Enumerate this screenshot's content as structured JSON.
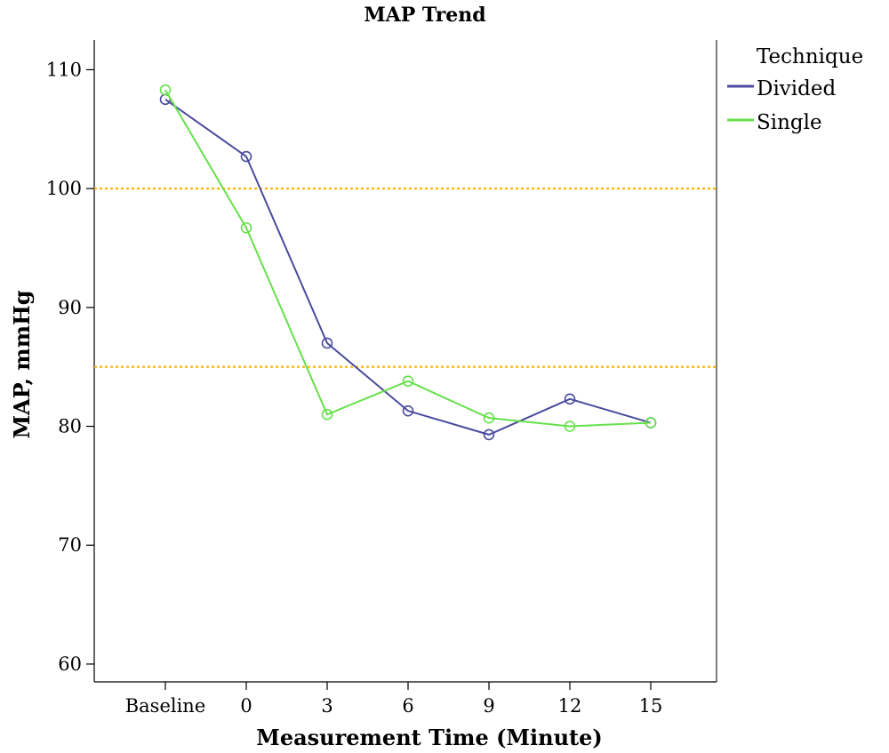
{
  "chart_data": {
    "type": "line",
    "title": "MAP Trend",
    "xlabel": "Measurement Time (Minute)",
    "ylabel": "MAP, mmHg",
    "categories": [
      "Baseline",
      "0",
      "3",
      "6",
      "9",
      "12",
      "15"
    ],
    "yticks": [
      60,
      70,
      80,
      90,
      100,
      110
    ],
    "ylim": [
      58.5,
      112.5
    ],
    "legend": {
      "title": "Technique",
      "placement": "top-right"
    },
    "reference_lines": [
      100,
      85
    ],
    "reference_line_color": "#f5b400",
    "series": [
      {
        "name": "Divided",
        "color": "#4b4ba0",
        "values": [
          107.5,
          102.7,
          87.0,
          81.3,
          79.3,
          82.3,
          80.3
        ]
      },
      {
        "name": "Single",
        "color": "#66e04c",
        "values": [
          108.3,
          96.7,
          81.0,
          83.8,
          80.7,
          80.0,
          80.3
        ]
      }
    ]
  }
}
